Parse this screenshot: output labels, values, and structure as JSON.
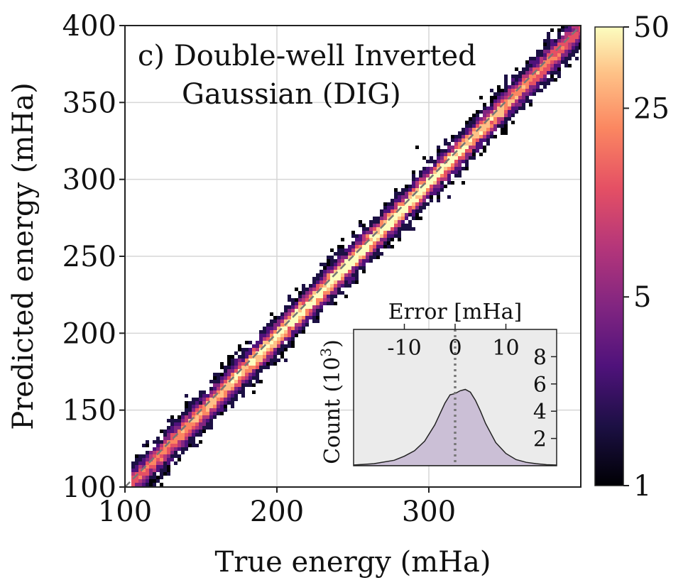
{
  "chart_data": [
    {
      "type": "heatmap",
      "title_line1": "c) Double-well Inverted",
      "title_line2": "Gaussian (DIG)",
      "xlabel": "True energy (mHa)",
      "ylabel": "Predicted energy (mHa)",
      "xlim": [
        100,
        400
      ],
      "ylim": [
        100,
        400
      ],
      "xticks": [
        100,
        200,
        300
      ],
      "yticks": [
        100,
        150,
        200,
        250,
        300,
        350,
        400
      ],
      "grid": true,
      "colormap": "magma",
      "colorbar": {
        "scale": "log",
        "range": [
          1,
          50
        ],
        "ticks": [
          1,
          5,
          25,
          50
        ]
      },
      "diagonal": {
        "style": "dashed",
        "color": "#777777",
        "from": [
          100,
          100
        ],
        "to": [
          400,
          400
        ]
      }
    },
    {
      "type": "area",
      "role": "inset",
      "xlabel": "Error [mHa]",
      "ylabel": "Count (10",
      "ylabel_sup": "3",
      "ylabel_end": ")",
      "xlim": [
        -20,
        20
      ],
      "ylim": [
        0,
        10
      ],
      "xticks": [
        -10,
        0,
        10
      ],
      "yticks": [
        2,
        4,
        6,
        8
      ],
      "fill": "#cbbfd6",
      "background": "#ebebeb",
      "vline": {
        "x": 0,
        "style": "dotted"
      },
      "x": [
        -20,
        -16,
        -12,
        -10,
        -8,
        -6,
        -4,
        -3,
        -2,
        -1,
        0,
        1,
        2,
        3,
        4,
        5,
        6,
        8,
        10,
        12,
        14,
        16,
        18,
        20
      ],
      "values": [
        0.05,
        0.15,
        0.4,
        0.7,
        1.1,
        1.8,
        3.0,
        3.8,
        4.6,
        5.2,
        5.3,
        5.5,
        5.6,
        5.4,
        4.8,
        4.0,
        3.1,
        1.7,
        0.9,
        0.45,
        0.25,
        0.15,
        0.08,
        0.05
      ]
    }
  ]
}
